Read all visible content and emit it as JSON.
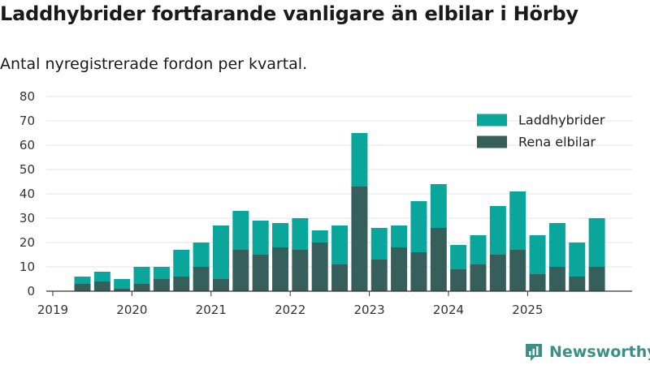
{
  "chart_data": {
    "type": "bar",
    "stacked": true,
    "title": "Laddhybrider fortfarande vanligare än elbilar i Hörby",
    "subtitle": "Antal nyregistrerade fordon per kvartal.",
    "ylim": [
      0,
      80
    ],
    "yticks": [
      0,
      10,
      20,
      30,
      40,
      50,
      60,
      70,
      80
    ],
    "xticks": [
      2019,
      2020,
      2021,
      2022,
      2023,
      2024,
      2025
    ],
    "x": [
      "2019 Q2",
      "2019 Q3",
      "2019 Q4",
      "2020 Q1",
      "2020 Q2",
      "2020 Q3",
      "2020 Q4",
      "2021 Q1",
      "2021 Q2",
      "2021 Q3",
      "2021 Q4",
      "2022 Q1",
      "2022 Q2",
      "2022 Q3",
      "2022 Q4",
      "2023 Q1",
      "2023 Q2",
      "2023 Q3",
      "2023 Q4",
      "2024 Q1",
      "2024 Q2",
      "2024 Q3",
      "2024 Q4",
      "2025 Q1",
      "2025 Q2",
      "2025 Q3",
      "2025 Q4"
    ],
    "legend_position": "top-right",
    "series": [
      {
        "name": "Laddhybrider",
        "color": "#0ba69b",
        "values": [
          3,
          4,
          4,
          7,
          5,
          11,
          10,
          22,
          16,
          14,
          10,
          13,
          5,
          16,
          22,
          13,
          9,
          21,
          18,
          10,
          12,
          20,
          24,
          16,
          18,
          14,
          20
        ]
      },
      {
        "name": "Rena elbilar",
        "color": "#365e5a",
        "values": [
          3,
          4,
          1,
          3,
          5,
          6,
          10,
          5,
          17,
          15,
          18,
          17,
          20,
          11,
          43,
          13,
          18,
          16,
          26,
          9,
          11,
          15,
          17,
          7,
          10,
          6,
          10
        ]
      }
    ]
  },
  "brand": {
    "name": "Newsworthy",
    "icon": "newsworthy-logo-icon",
    "color": "#3a8f87"
  }
}
